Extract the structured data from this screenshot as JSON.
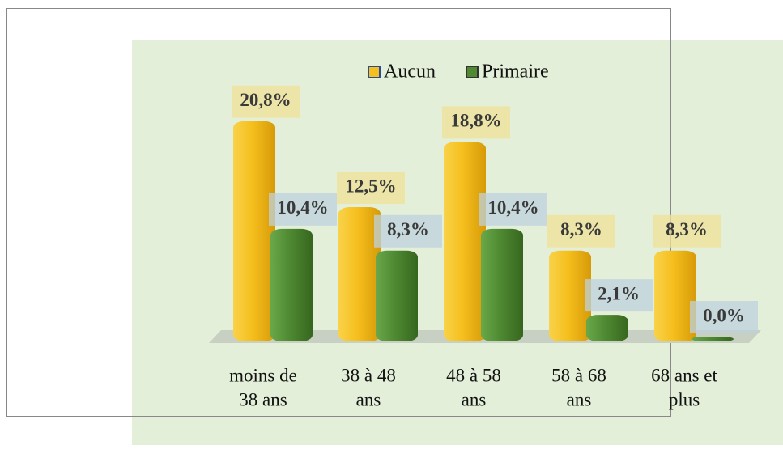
{
  "chart_data": {
    "type": "bar",
    "categories": [
      [
        "moins de",
        "38 ans"
      ],
      [
        "38 à 48",
        "ans"
      ],
      [
        "48 à 58",
        "ans"
      ],
      [
        "58 à 68",
        "ans"
      ],
      [
        "68 ans et",
        "plus"
      ]
    ],
    "series": [
      {
        "name": "Aucun",
        "color": "#f5bf1d",
        "values": [
          20.8,
          12.5,
          18.8,
          8.3,
          8.3
        ],
        "value_labels": [
          "20,8%",
          "12,5%",
          "18,8%",
          "8,3%",
          "8,3%"
        ]
      },
      {
        "name": "Primaire",
        "color": "#4f8a32",
        "values": [
          10.4,
          8.3,
          10.4,
          2.1,
          0.0
        ],
        "value_labels": [
          "10,4%",
          "8,3%",
          "10,4%",
          "2,1%",
          "0,0%"
        ]
      }
    ]
  }
}
